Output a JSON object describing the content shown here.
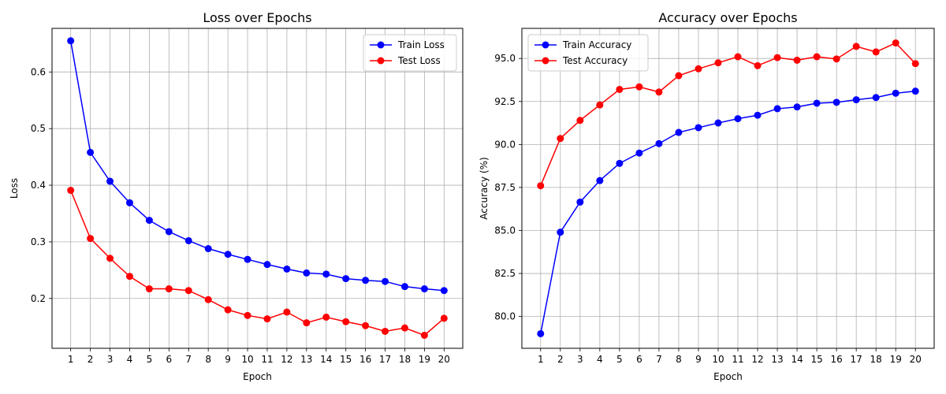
{
  "chart_data": [
    {
      "type": "line",
      "title": "Loss over Epochs",
      "xlabel": "Epoch",
      "ylabel": "Loss",
      "x": [
        1,
        2,
        3,
        4,
        5,
        6,
        7,
        8,
        9,
        10,
        11,
        12,
        13,
        14,
        15,
        16,
        17,
        18,
        19,
        20
      ],
      "xticks": [
        "1",
        "2",
        "3",
        "4",
        "5",
        "6",
        "7",
        "8",
        "9",
        "10",
        "11",
        "12",
        "13",
        "14",
        "15",
        "16",
        "17",
        "18",
        "19",
        "20"
      ],
      "ylim": [
        0.112,
        0.677
      ],
      "yticks": [
        0.2,
        0.3,
        0.4,
        0.5,
        0.6
      ],
      "ytick_labels": [
        "0.2",
        "0.3",
        "0.4",
        "0.5",
        "0.6"
      ],
      "grid": true,
      "legend_position": "top-right",
      "series": [
        {
          "name": "Train Loss",
          "color": "#0000ff",
          "marker": "circle",
          "values": [
            0.655,
            0.458,
            0.407,
            0.369,
            0.338,
            0.318,
            0.302,
            0.288,
            0.278,
            0.269,
            0.26,
            0.252,
            0.245,
            0.243,
            0.235,
            0.232,
            0.23,
            0.221,
            0.217,
            0.214
          ]
        },
        {
          "name": "Test Loss",
          "color": "#ff0000",
          "marker": "circle",
          "values": [
            0.391,
            0.306,
            0.271,
            0.239,
            0.217,
            0.217,
            0.214,
            0.198,
            0.18,
            0.17,
            0.164,
            0.176,
            0.157,
            0.167,
            0.159,
            0.152,
            0.142,
            0.148,
            0.135,
            0.165
          ]
        }
      ]
    },
    {
      "type": "line",
      "title": "Accuracy over Epochs",
      "xlabel": "Epoch",
      "ylabel": "Accuracy (%)",
      "x": [
        1,
        2,
        3,
        4,
        5,
        6,
        7,
        8,
        9,
        10,
        11,
        12,
        13,
        14,
        15,
        16,
        17,
        18,
        19,
        20
      ],
      "xticks": [
        "1",
        "2",
        "3",
        "4",
        "5",
        "6",
        "7",
        "8",
        "9",
        "10",
        "11",
        "12",
        "13",
        "14",
        "15",
        "16",
        "17",
        "18",
        "19",
        "20"
      ],
      "ylim": [
        78.15,
        96.75
      ],
      "yticks": [
        80.0,
        82.5,
        85.0,
        87.5,
        90.0,
        92.5,
        95.0
      ],
      "ytick_labels": [
        "80.0",
        "82.5",
        "85.0",
        "87.5",
        "90.0",
        "92.5",
        "95.0"
      ],
      "grid": true,
      "legend_position": "top-left",
      "series": [
        {
          "name": "Train Accuracy",
          "color": "#0000ff",
          "marker": "circle",
          "values": [
            79.0,
            84.9,
            86.65,
            87.9,
            88.9,
            89.5,
            90.05,
            90.7,
            90.98,
            91.25,
            91.5,
            91.7,
            92.08,
            92.18,
            92.4,
            92.45,
            92.6,
            92.73,
            92.98,
            93.1
          ]
        },
        {
          "name": "Test Accuracy",
          "color": "#ff0000",
          "marker": "circle",
          "values": [
            87.6,
            90.35,
            91.4,
            92.3,
            93.2,
            93.35,
            93.05,
            94.0,
            94.4,
            94.75,
            95.1,
            94.58,
            95.05,
            94.9,
            95.1,
            94.97,
            95.7,
            95.38,
            95.9,
            94.7
          ]
        }
      ]
    }
  ]
}
